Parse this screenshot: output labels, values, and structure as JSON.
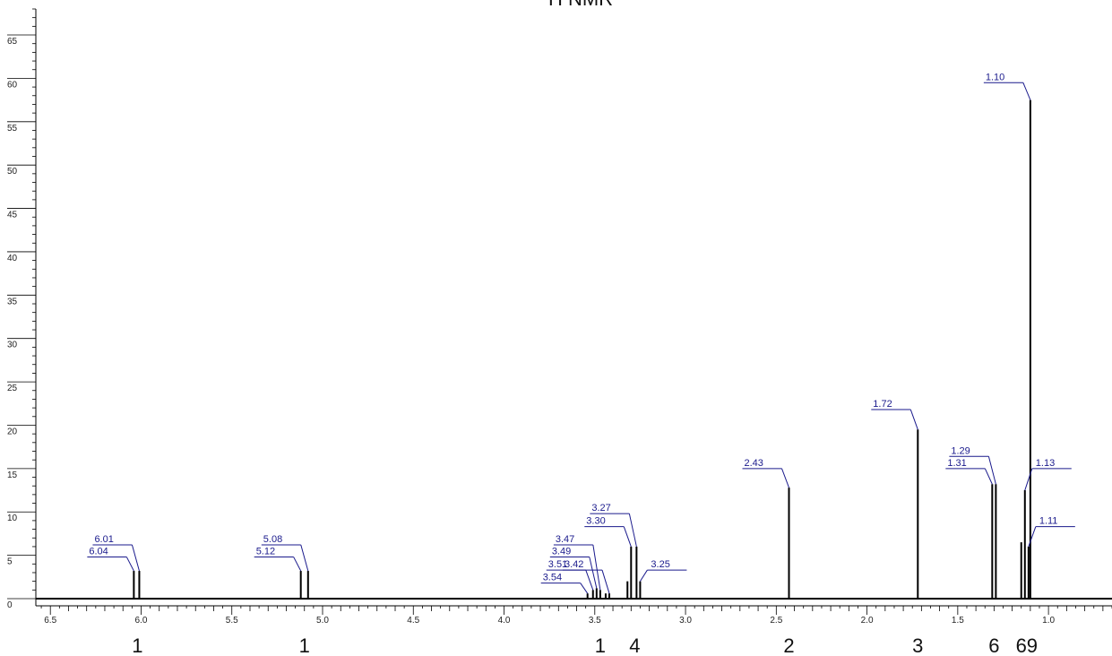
{
  "chart_data": {
    "type": "nmr_spectrum",
    "title": "H NMR",
    "xlabel": "",
    "ylabel": "",
    "x_reversed": true,
    "xlim": [
      6.58,
      0.65
    ],
    "ylim": [
      0,
      68
    ],
    "x_ticks": [
      {
        "v": 6.5,
        "label": "6.5"
      },
      {
        "v": 6.0,
        "label": "6.0"
      },
      {
        "v": 5.5,
        "label": "5.5"
      },
      {
        "v": 5.0,
        "label": "5.0"
      },
      {
        "v": 4.5,
        "label": "4.5"
      },
      {
        "v": 4.0,
        "label": "4.0"
      },
      {
        "v": 3.5,
        "label": "3.5"
      },
      {
        "v": 3.0,
        "label": "3.0"
      },
      {
        "v": 2.5,
        "label": "2.5"
      },
      {
        "v": 2.0,
        "label": "2.0"
      },
      {
        "v": 1.5,
        "label": "1.5"
      },
      {
        "v": 1.0,
        "label": "1.0"
      }
    ],
    "y_ticks": [
      {
        "v": 0,
        "label": "0"
      },
      {
        "v": 5,
        "label": "5"
      },
      {
        "v": 10,
        "label": "10"
      },
      {
        "v": 15,
        "label": "15"
      },
      {
        "v": 20,
        "label": "20"
      },
      {
        "v": 25,
        "label": "25"
      },
      {
        "v": 30,
        "label": "30"
      },
      {
        "v": 35,
        "label": "35"
      },
      {
        "v": 40,
        "label": "40"
      },
      {
        "v": 45,
        "label": "45"
      },
      {
        "v": 50,
        "label": "50"
      },
      {
        "v": 55,
        "label": "55"
      },
      {
        "v": 60,
        "label": "60"
      },
      {
        "v": 65,
        "label": "65"
      }
    ],
    "peaks": [
      {
        "x": 6.04,
        "y": 3.2
      },
      {
        "x": 6.01,
        "y": 3.2
      },
      {
        "x": 5.12,
        "y": 3.2
      },
      {
        "x": 5.08,
        "y": 3.2
      },
      {
        "x": 3.54,
        "y": 0.6
      },
      {
        "x": 3.51,
        "y": 1.0
      },
      {
        "x": 3.49,
        "y": 1.2
      },
      {
        "x": 3.47,
        "y": 1.0
      },
      {
        "x": 3.44,
        "y": 0.6
      },
      {
        "x": 3.42,
        "y": 0.6
      },
      {
        "x": 3.32,
        "y": 2.0
      },
      {
        "x": 3.3,
        "y": 6.0
      },
      {
        "x": 3.27,
        "y": 6.0
      },
      {
        "x": 3.25,
        "y": 2.0
      },
      {
        "x": 2.43,
        "y": 12.8
      },
      {
        "x": 1.72,
        "y": 19.5
      },
      {
        "x": 1.31,
        "y": 13.2
      },
      {
        "x": 1.29,
        "y": 13.2
      },
      {
        "x": 1.15,
        "y": 6.5
      },
      {
        "x": 1.13,
        "y": 12.5
      },
      {
        "x": 1.11,
        "y": 6.0
      },
      {
        "x": 1.1,
        "y": 57.5
      }
    ],
    "peak_labels": [
      {
        "text": "6.04",
        "x": 6.04,
        "level": 4.8
      },
      {
        "text": "6.01",
        "x": 6.01,
        "level": 6.2
      },
      {
        "text": "5.12",
        "x": 5.12,
        "level": 4.8
      },
      {
        "text": "5.08",
        "x": 5.08,
        "level": 6.2
      },
      {
        "text": "3.54",
        "x": 3.54,
        "level": 1.8
      },
      {
        "text": "3.51",
        "x": 3.51,
        "level": 3.3
      },
      {
        "text": "3.49",
        "x": 3.49,
        "level": 4.8
      },
      {
        "text": "3.47",
        "x": 3.47,
        "level": 6.2
      },
      {
        "text": "3.42",
        "x": 3.42,
        "level": 3.3
      },
      {
        "text": "3.30",
        "x": 3.3,
        "level": 8.3
      },
      {
        "text": "3.27",
        "x": 3.27,
        "level": 9.8
      },
      {
        "text": "3.25",
        "x": 3.25,
        "level": 3.3
      },
      {
        "text": "2.43",
        "x": 2.43,
        "level": 15.0
      },
      {
        "text": "1.72",
        "x": 1.72,
        "level": 21.8
      },
      {
        "text": "1.31",
        "x": 1.31,
        "level": 15.0
      },
      {
        "text": "1.29",
        "x": 1.29,
        "level": 16.4
      },
      {
        "text": "1.13",
        "x": 1.13,
        "level": 15.0
      },
      {
        "text": "1.11",
        "x": 1.11,
        "level": 8.3
      },
      {
        "text": "1.10",
        "x": 1.1,
        "level": 59.5
      }
    ],
    "integrals": [
      {
        "x": 6.02,
        "text": "1"
      },
      {
        "x": 5.1,
        "text": "1"
      },
      {
        "x": 3.47,
        "text": "1"
      },
      {
        "x": 3.28,
        "text": "4"
      },
      {
        "x": 2.43,
        "text": "2"
      },
      {
        "x": 1.72,
        "text": "3"
      },
      {
        "x": 1.3,
        "text": "6"
      },
      {
        "x": 1.15,
        "text": "6"
      },
      {
        "x": 1.09,
        "text": "9"
      }
    ],
    "colors": {
      "peak": "#000000",
      "label": "#1a1a8c",
      "axis": "#000000"
    }
  }
}
